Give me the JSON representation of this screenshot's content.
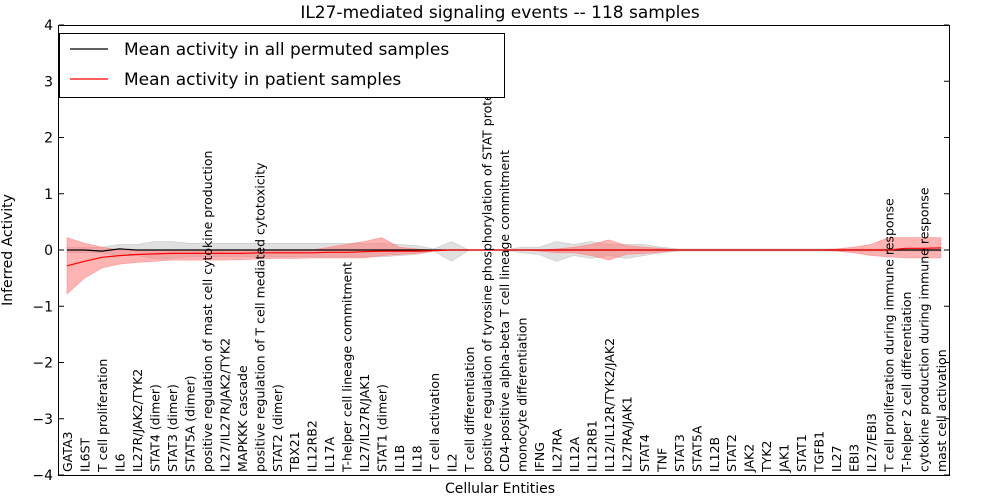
{
  "chart_data": {
    "type": "line",
    "title": "IL27-mediated signaling events -- 118 samples",
    "xlabel": "Cellular Entities",
    "ylabel": "Inferred Activity",
    "ylim": [
      -4,
      4
    ],
    "yticks": [
      -4,
      -3,
      -2,
      -1,
      0,
      1,
      2,
      3,
      4
    ],
    "ytick_labels": [
      "−4",
      "−3",
      "−2",
      "−1",
      "0",
      "1",
      "2",
      "3",
      "4"
    ],
    "legend_position": "top-left",
    "categories": [
      "GATA3",
      "IL6ST",
      "T cell proliferation",
      "IL6",
      "IL27R/JAK2/TYK2",
      "STAT4 (dimer)",
      "STAT3 (dimer)",
      "STAT5A (dimer)",
      "positive regulation of mast cell cytokine production",
      "IL27/IL27R/JAK2/TYK2",
      "MAPKKK cascade",
      "positive regulation of T cell mediated cytotoxicity",
      "STAT2 (dimer)",
      "TBX21",
      "IL12RB2",
      "IL17A",
      "T-helper cell lineage commitment",
      "IL27/IL27R/JAK1",
      "STAT1 (dimer)",
      "IL1B",
      "IL18",
      "T cell activation",
      "IL2",
      "T cell differentiation",
      "positive regulation of tyrosine phosphorylation of STAT protein",
      "CD4-positive alpha-beta T cell lineage commitment",
      "monocyte differentiation",
      "IFNG",
      "IL27RA",
      "IL12A",
      "IL12RB1",
      "IL12/IL12R/TYK2/JAK2",
      "IL27RA/JAK1",
      "STAT4",
      "TNF",
      "STAT3",
      "STAT5A",
      "IL12B",
      "STAT2",
      "JAK2",
      "TYK2",
      "JAK1",
      "STAT1",
      "TGFB1",
      "IL27",
      "EBI3",
      "IL27/EBI3",
      "T cell proliferation during immune response",
      "T-helper 2 cell differentiation",
      "cytokine production during immune response",
      "mast cell activation"
    ],
    "series": [
      {
        "name": "Mean activity in all permuted samples",
        "color": "#000000",
        "band_color": "#bbbbbb",
        "values": [
          0.0,
          0.0,
          -0.02,
          0.02,
          0.0,
          0.0,
          0.0,
          0.0,
          0.0,
          0.0,
          0.0,
          0.0,
          0.0,
          0.0,
          0.0,
          0.0,
          0.0,
          0.0,
          0.0,
          0.0,
          0.0,
          0.0,
          0.0,
          0.0,
          0.0,
          0.0,
          0.0,
          0.0,
          0.0,
          0.0,
          0.0,
          0.0,
          0.0,
          0.0,
          0.0,
          0.0,
          0.0,
          0.0,
          0.0,
          0.0,
          0.0,
          0.0,
          0.0,
          0.0,
          0.0,
          0.0,
          0.0,
          0.0,
          0.0,
          0.0,
          0.0
        ],
        "band_upper": [
          0.05,
          0.05,
          0.05,
          0.1,
          0.1,
          0.15,
          0.15,
          0.12,
          0.12,
          0.12,
          0.12,
          0.12,
          0.12,
          0.12,
          0.12,
          0.12,
          0.12,
          0.12,
          0.12,
          0.1,
          0.08,
          0.02,
          0.15,
          0.0,
          0.0,
          0.0,
          0.05,
          0.05,
          0.15,
          0.1,
          0.15,
          0.1,
          0.1,
          0.1,
          0.05,
          0.02,
          0.02,
          0.02,
          0.02,
          0.02,
          0.02,
          0.02,
          0.02,
          0.02,
          0.02,
          0.02,
          0.02,
          0.02,
          0.02,
          0.02,
          0.02
        ],
        "band_lower": [
          -0.05,
          -0.05,
          -0.05,
          -0.1,
          -0.1,
          -0.15,
          -0.15,
          -0.12,
          -0.12,
          -0.12,
          -0.12,
          -0.12,
          -0.12,
          -0.12,
          -0.12,
          -0.12,
          -0.12,
          -0.12,
          -0.12,
          -0.1,
          -0.08,
          -0.02,
          -0.2,
          0.0,
          0.0,
          0.0,
          -0.05,
          -0.08,
          -0.2,
          -0.1,
          -0.15,
          -0.1,
          -0.15,
          -0.1,
          -0.05,
          -0.02,
          -0.02,
          -0.02,
          -0.02,
          -0.02,
          -0.02,
          -0.02,
          -0.02,
          -0.02,
          -0.02,
          -0.02,
          -0.02,
          -0.02,
          -0.02,
          -0.02,
          -0.02
        ]
      },
      {
        "name": "Mean activity in patient samples",
        "color": "#ff0000",
        "band_color": "#ff7777",
        "values": [
          -0.28,
          -0.2,
          -0.13,
          -0.1,
          -0.08,
          -0.07,
          -0.06,
          -0.06,
          -0.06,
          -0.06,
          -0.06,
          -0.05,
          -0.05,
          -0.05,
          -0.05,
          -0.04,
          -0.04,
          -0.03,
          -0.02,
          -0.02,
          -0.02,
          -0.01,
          0.0,
          0.0,
          0.0,
          0.0,
          0.0,
          0.0,
          0.0,
          0.0,
          0.0,
          0.0,
          0.0,
          0.0,
          0.0,
          0.0,
          0.0,
          0.0,
          0.0,
          0.0,
          0.0,
          0.0,
          0.0,
          0.0,
          0.0,
          0.0,
          0.0,
          0.0,
          0.03,
          0.03,
          0.04
        ],
        "band_upper": [
          0.22,
          0.12,
          0.05,
          0.0,
          0.0,
          0.0,
          0.0,
          0.0,
          0.0,
          0.0,
          0.0,
          0.0,
          0.0,
          0.0,
          0.0,
          0.05,
          0.1,
          0.15,
          0.22,
          0.05,
          0.02,
          0.0,
          0.0,
          0.0,
          0.0,
          0.0,
          0.0,
          0.0,
          0.02,
          0.05,
          0.1,
          0.18,
          0.08,
          0.05,
          0.03,
          0.0,
          0.0,
          0.0,
          0.0,
          0.0,
          0.0,
          0.0,
          0.0,
          0.0,
          0.02,
          0.05,
          0.1,
          0.22,
          0.22,
          0.22,
          0.22
        ],
        "band_lower": [
          -0.78,
          -0.5,
          -0.32,
          -0.25,
          -0.22,
          -0.2,
          -0.18,
          -0.18,
          -0.18,
          -0.18,
          -0.17,
          -0.16,
          -0.15,
          -0.15,
          -0.14,
          -0.14,
          -0.14,
          -0.14,
          -0.1,
          -0.08,
          -0.06,
          -0.02,
          0.0,
          0.0,
          0.0,
          0.0,
          0.0,
          -0.02,
          -0.05,
          -0.05,
          -0.1,
          -0.18,
          -0.08,
          -0.06,
          -0.04,
          0.0,
          0.0,
          0.0,
          0.0,
          0.0,
          0.0,
          0.0,
          0.0,
          0.0,
          -0.02,
          -0.05,
          -0.1,
          -0.12,
          -0.14,
          -0.14,
          -0.14
        ]
      }
    ]
  }
}
